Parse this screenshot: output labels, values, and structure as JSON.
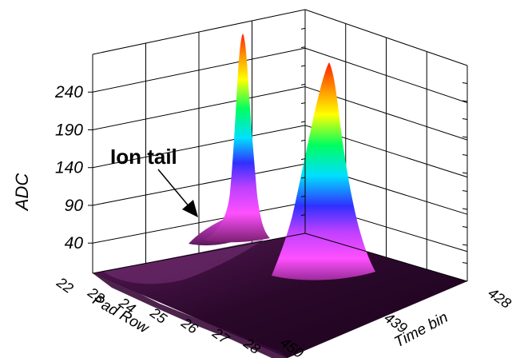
{
  "chart_data": {
    "type": "surface-3d",
    "title": "",
    "zlabel": "ADC",
    "zticks": [
      40,
      90,
      140,
      190,
      240
    ],
    "x_axis": {
      "label": "Pad Row",
      "ticks": [
        "22",
        "23",
        "24",
        "25",
        "26",
        "27",
        "28"
      ]
    },
    "y_axis": {
      "label": "Time bin",
      "ticks": [
        "450",
        "439",
        "428"
      ]
    },
    "annotation": {
      "text": "Ion tail"
    },
    "peaks": [
      {
        "pad_row": 25.5,
        "time_bin": 431,
        "adc": 255
      },
      {
        "pad_row": 26.5,
        "time_bin": 441,
        "adc": 245
      }
    ],
    "colormap": [
      "#3a0a3a",
      "#9a2a9a",
      "#ff50ff",
      "#3030ff",
      "#00e0ff",
      "#00ff60",
      "#ffff00",
      "#ff2000"
    ]
  }
}
